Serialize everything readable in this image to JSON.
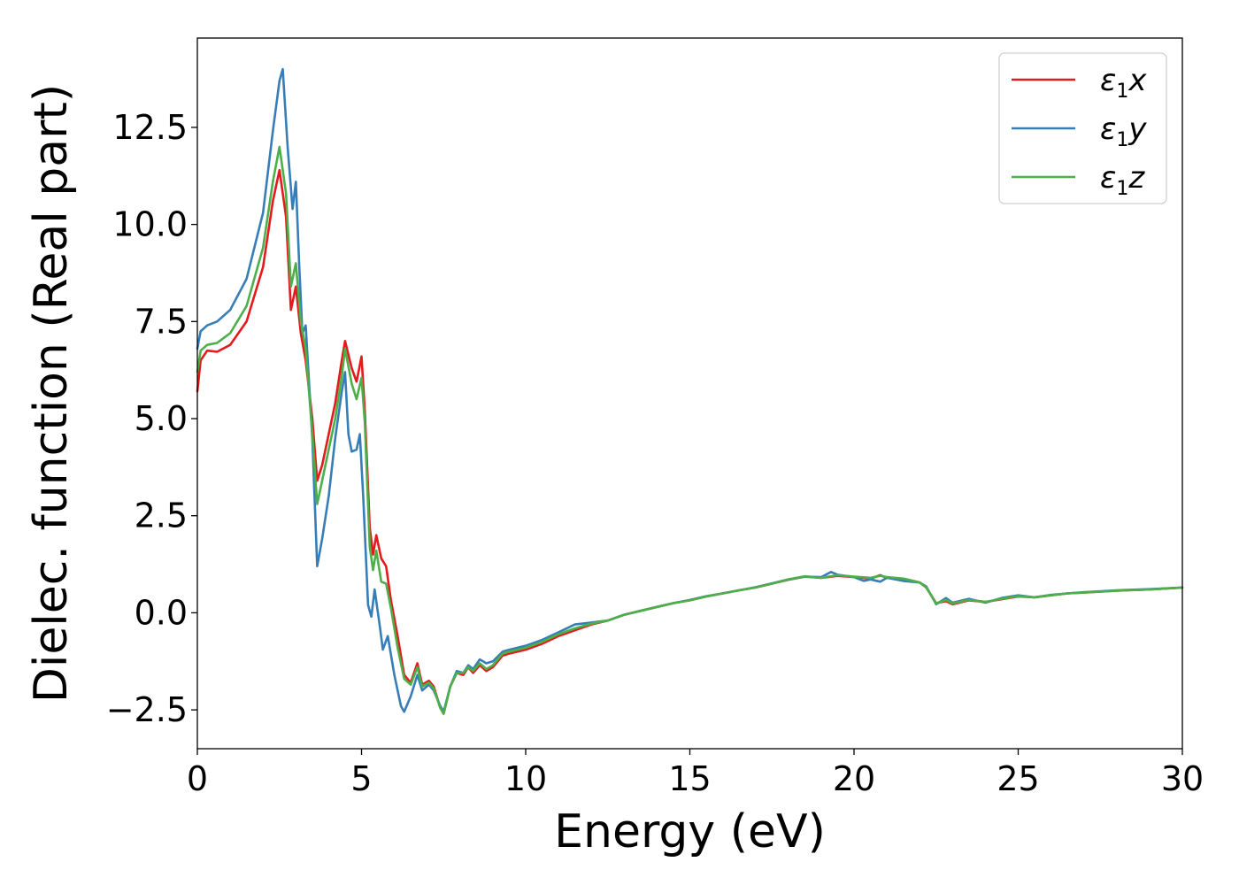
{
  "chart_data": {
    "type": "line",
    "xlabel": "Energy (eV)",
    "ylabel": "Dielec. function (Real part)",
    "xlim": [
      0,
      30
    ],
    "ylim": [
      -3.5,
      14.8
    ],
    "xticks": [
      0,
      5,
      10,
      15,
      20,
      25,
      30
    ],
    "xtick_labels": [
      "0",
      "5",
      "10",
      "15",
      "20",
      "25",
      "30"
    ],
    "yticks": [
      -2.5,
      0.0,
      2.5,
      5.0,
      7.5,
      10.0,
      12.5
    ],
    "ytick_labels": [
      "−2.5",
      "0.0",
      "2.5",
      "5.0",
      "7.5",
      "10.0",
      "12.5"
    ],
    "grid": false,
    "legend_position": "top-right",
    "series": [
      {
        "name": "ε₁x",
        "symbol": "ε",
        "subscript": "1",
        "suffix": "x",
        "color": "#e41a1c",
        "points": [
          [
            0,
            5.7
          ],
          [
            0.1,
            6.5
          ],
          [
            0.3,
            6.75
          ],
          [
            0.6,
            6.72
          ],
          [
            1.0,
            6.9
          ],
          [
            1.5,
            7.5
          ],
          [
            2.0,
            8.9
          ],
          [
            2.3,
            10.6
          ],
          [
            2.5,
            11.4
          ],
          [
            2.7,
            10.2
          ],
          [
            2.85,
            7.8
          ],
          [
            3.0,
            8.4
          ],
          [
            3.15,
            7.2
          ],
          [
            3.3,
            6.5
          ],
          [
            3.5,
            5.0
          ],
          [
            3.65,
            3.4
          ],
          [
            3.8,
            3.8
          ],
          [
            4.0,
            4.6
          ],
          [
            4.2,
            5.4
          ],
          [
            4.4,
            6.5
          ],
          [
            4.5,
            7.0
          ],
          [
            4.7,
            6.3
          ],
          [
            4.85,
            5.95
          ],
          [
            5.0,
            6.6
          ],
          [
            5.1,
            5.2
          ],
          [
            5.25,
            2.2
          ],
          [
            5.35,
            1.5
          ],
          [
            5.45,
            2.0
          ],
          [
            5.6,
            1.4
          ],
          [
            5.75,
            1.2
          ],
          [
            5.9,
            0.3
          ],
          [
            6.1,
            -0.6
          ],
          [
            6.3,
            -1.6
          ],
          [
            6.5,
            -1.8
          ],
          [
            6.7,
            -1.3
          ],
          [
            6.85,
            -1.85
          ],
          [
            7.05,
            -1.75
          ],
          [
            7.2,
            -1.9
          ],
          [
            7.4,
            -2.45
          ],
          [
            7.5,
            -2.6
          ],
          [
            7.7,
            -1.9
          ],
          [
            7.9,
            -1.55
          ],
          [
            8.1,
            -1.6
          ],
          [
            8.25,
            -1.4
          ],
          [
            8.4,
            -1.55
          ],
          [
            8.6,
            -1.35
          ],
          [
            8.8,
            -1.5
          ],
          [
            9.0,
            -1.4
          ],
          [
            9.3,
            -1.1
          ],
          [
            9.5,
            -1.05
          ],
          [
            10.0,
            -0.95
          ],
          [
            10.5,
            -0.8
          ],
          [
            11.0,
            -0.6
          ],
          [
            11.5,
            -0.45
          ],
          [
            12.0,
            -0.3
          ],
          [
            12.5,
            -0.2
          ],
          [
            13.0,
            -0.05
          ],
          [
            13.5,
            0.05
          ],
          [
            14.0,
            0.15
          ],
          [
            14.5,
            0.25
          ],
          [
            15.0,
            0.32
          ],
          [
            15.5,
            0.42
          ],
          [
            16.0,
            0.5
          ],
          [
            16.5,
            0.58
          ],
          [
            17.0,
            0.65
          ],
          [
            17.5,
            0.75
          ],
          [
            18.0,
            0.85
          ],
          [
            18.5,
            0.93
          ],
          [
            19.0,
            0.9
          ],
          [
            19.5,
            0.95
          ],
          [
            20.0,
            0.92
          ],
          [
            20.5,
            0.88
          ],
          [
            20.8,
            0.97
          ],
          [
            21.0,
            0.9
          ],
          [
            21.5,
            0.88
          ],
          [
            22.0,
            0.78
          ],
          [
            22.2,
            0.65
          ],
          [
            22.5,
            0.25
          ],
          [
            22.8,
            0.3
          ],
          [
            23.0,
            0.22
          ],
          [
            23.5,
            0.32
          ],
          [
            24.0,
            0.28
          ],
          [
            24.5,
            0.35
          ],
          [
            25.0,
            0.42
          ],
          [
            25.5,
            0.4
          ],
          [
            26.0,
            0.45
          ],
          [
            26.5,
            0.5
          ],
          [
            27.0,
            0.52
          ],
          [
            28.0,
            0.57
          ],
          [
            29.0,
            0.6
          ],
          [
            30.0,
            0.65
          ]
        ]
      },
      {
        "name": "ε₁y",
        "symbol": "ε",
        "subscript": "1",
        "suffix": "y",
        "color": "#377eb8",
        "points": [
          [
            0,
            6.8
          ],
          [
            0.1,
            7.25
          ],
          [
            0.3,
            7.4
          ],
          [
            0.6,
            7.5
          ],
          [
            1.0,
            7.8
          ],
          [
            1.5,
            8.6
          ],
          [
            2.0,
            10.3
          ],
          [
            2.3,
            12.4
          ],
          [
            2.5,
            13.7
          ],
          [
            2.6,
            14.0
          ],
          [
            2.75,
            12.0
          ],
          [
            2.9,
            10.4
          ],
          [
            3.0,
            11.1
          ],
          [
            3.1,
            9.0
          ],
          [
            3.2,
            7.2
          ],
          [
            3.3,
            7.4
          ],
          [
            3.5,
            4.5
          ],
          [
            3.65,
            1.2
          ],
          [
            3.8,
            1.9
          ],
          [
            4.0,
            3.0
          ],
          [
            4.2,
            4.5
          ],
          [
            4.4,
            5.7
          ],
          [
            4.5,
            6.2
          ],
          [
            4.6,
            4.6
          ],
          [
            4.7,
            4.15
          ],
          [
            4.85,
            4.2
          ],
          [
            4.95,
            4.6
          ],
          [
            5.05,
            3.0
          ],
          [
            5.2,
            0.2
          ],
          [
            5.3,
            -0.1
          ],
          [
            5.4,
            0.6
          ],
          [
            5.55,
            -0.3
          ],
          [
            5.65,
            -0.95
          ],
          [
            5.8,
            -0.6
          ],
          [
            6.0,
            -1.6
          ],
          [
            6.2,
            -2.4
          ],
          [
            6.3,
            -2.55
          ],
          [
            6.5,
            -2.15
          ],
          [
            6.7,
            -1.6
          ],
          [
            6.85,
            -2.0
          ],
          [
            7.05,
            -1.85
          ],
          [
            7.2,
            -2.0
          ],
          [
            7.4,
            -2.4
          ],
          [
            7.5,
            -2.55
          ],
          [
            7.7,
            -1.9
          ],
          [
            7.9,
            -1.5
          ],
          [
            8.1,
            -1.55
          ],
          [
            8.25,
            -1.35
          ],
          [
            8.4,
            -1.45
          ],
          [
            8.6,
            -1.2
          ],
          [
            8.8,
            -1.3
          ],
          [
            9.0,
            -1.25
          ],
          [
            9.3,
            -1.0
          ],
          [
            9.5,
            -0.95
          ],
          [
            10.0,
            -0.85
          ],
          [
            10.5,
            -0.7
          ],
          [
            11.0,
            -0.5
          ],
          [
            11.5,
            -0.3
          ],
          [
            12.0,
            -0.25
          ],
          [
            12.5,
            -0.2
          ],
          [
            13.0,
            -0.05
          ],
          [
            13.5,
            0.05
          ],
          [
            14.0,
            0.15
          ],
          [
            14.5,
            0.25
          ],
          [
            15.0,
            0.33
          ],
          [
            15.5,
            0.43
          ],
          [
            16.0,
            0.5
          ],
          [
            16.5,
            0.58
          ],
          [
            17.0,
            0.66
          ],
          [
            17.5,
            0.76
          ],
          [
            18.0,
            0.86
          ],
          [
            18.5,
            0.93
          ],
          [
            19.0,
            0.92
          ],
          [
            19.3,
            1.05
          ],
          [
            19.5,
            0.98
          ],
          [
            20.0,
            0.92
          ],
          [
            20.3,
            0.82
          ],
          [
            20.5,
            0.86
          ],
          [
            20.8,
            0.8
          ],
          [
            21.0,
            0.9
          ],
          [
            21.5,
            0.82
          ],
          [
            22.0,
            0.78
          ],
          [
            22.2,
            0.68
          ],
          [
            22.5,
            0.22
          ],
          [
            22.8,
            0.38
          ],
          [
            23.0,
            0.26
          ],
          [
            23.5,
            0.36
          ],
          [
            24.0,
            0.26
          ],
          [
            24.5,
            0.38
          ],
          [
            25.0,
            0.45
          ],
          [
            25.5,
            0.4
          ],
          [
            26.0,
            0.46
          ],
          [
            26.5,
            0.5
          ],
          [
            27.0,
            0.53
          ],
          [
            28.0,
            0.58
          ],
          [
            29.0,
            0.61
          ],
          [
            30.0,
            0.65
          ]
        ]
      },
      {
        "name": "ε₁z",
        "symbol": "ε",
        "subscript": "1",
        "suffix": "z",
        "color": "#4daf4a",
        "points": [
          [
            0,
            6.2
          ],
          [
            0.1,
            6.75
          ],
          [
            0.3,
            6.9
          ],
          [
            0.6,
            6.95
          ],
          [
            1.0,
            7.2
          ],
          [
            1.5,
            7.9
          ],
          [
            2.0,
            9.4
          ],
          [
            2.3,
            11.1
          ],
          [
            2.5,
            12.0
          ],
          [
            2.7,
            10.8
          ],
          [
            2.85,
            8.4
          ],
          [
            3.0,
            9.0
          ],
          [
            3.15,
            7.5
          ],
          [
            3.3,
            6.8
          ],
          [
            3.5,
            4.6
          ],
          [
            3.65,
            2.8
          ],
          [
            3.8,
            3.4
          ],
          [
            4.0,
            4.2
          ],
          [
            4.2,
            5.0
          ],
          [
            4.4,
            6.1
          ],
          [
            4.5,
            6.8
          ],
          [
            4.7,
            5.9
          ],
          [
            4.85,
            5.5
          ],
          [
            5.0,
            6.05
          ],
          [
            5.1,
            4.9
          ],
          [
            5.25,
            1.7
          ],
          [
            5.35,
            1.1
          ],
          [
            5.45,
            1.6
          ],
          [
            5.6,
            0.8
          ],
          [
            5.75,
            0.75
          ],
          [
            5.9,
            0.1
          ],
          [
            6.1,
            -0.9
          ],
          [
            6.3,
            -1.7
          ],
          [
            6.5,
            -1.85
          ],
          [
            6.7,
            -1.4
          ],
          [
            6.85,
            -1.9
          ],
          [
            7.05,
            -1.8
          ],
          [
            7.2,
            -1.95
          ],
          [
            7.4,
            -2.45
          ],
          [
            7.5,
            -2.6
          ],
          [
            7.7,
            -1.9
          ],
          [
            7.9,
            -1.55
          ],
          [
            8.1,
            -1.55
          ],
          [
            8.25,
            -1.4
          ],
          [
            8.4,
            -1.5
          ],
          [
            8.6,
            -1.3
          ],
          [
            8.8,
            -1.45
          ],
          [
            9.0,
            -1.35
          ],
          [
            9.3,
            -1.05
          ],
          [
            9.5,
            -1.0
          ],
          [
            10.0,
            -0.9
          ],
          [
            10.5,
            -0.75
          ],
          [
            11.0,
            -0.55
          ],
          [
            11.5,
            -0.4
          ],
          [
            12.0,
            -0.28
          ],
          [
            12.5,
            -0.2
          ],
          [
            13.0,
            -0.05
          ],
          [
            13.5,
            0.05
          ],
          [
            14.0,
            0.15
          ],
          [
            14.5,
            0.25
          ],
          [
            15.0,
            0.32
          ],
          [
            15.5,
            0.42
          ],
          [
            16.0,
            0.5
          ],
          [
            16.5,
            0.58
          ],
          [
            17.0,
            0.65
          ],
          [
            17.5,
            0.75
          ],
          [
            18.0,
            0.86
          ],
          [
            18.5,
            0.94
          ],
          [
            19.0,
            0.9
          ],
          [
            19.5,
            0.97
          ],
          [
            20.0,
            0.93
          ],
          [
            20.5,
            0.9
          ],
          [
            20.8,
            0.95
          ],
          [
            21.0,
            0.92
          ],
          [
            21.5,
            0.88
          ],
          [
            22.0,
            0.78
          ],
          [
            22.2,
            0.66
          ],
          [
            22.5,
            0.24
          ],
          [
            22.8,
            0.33
          ],
          [
            23.0,
            0.24
          ],
          [
            23.5,
            0.33
          ],
          [
            24.0,
            0.28
          ],
          [
            24.5,
            0.36
          ],
          [
            25.0,
            0.43
          ],
          [
            25.5,
            0.4
          ],
          [
            26.0,
            0.45
          ],
          [
            26.5,
            0.5
          ],
          [
            27.0,
            0.52
          ],
          [
            28.0,
            0.57
          ],
          [
            29.0,
            0.6
          ],
          [
            30.0,
            0.65
          ]
        ]
      }
    ]
  }
}
